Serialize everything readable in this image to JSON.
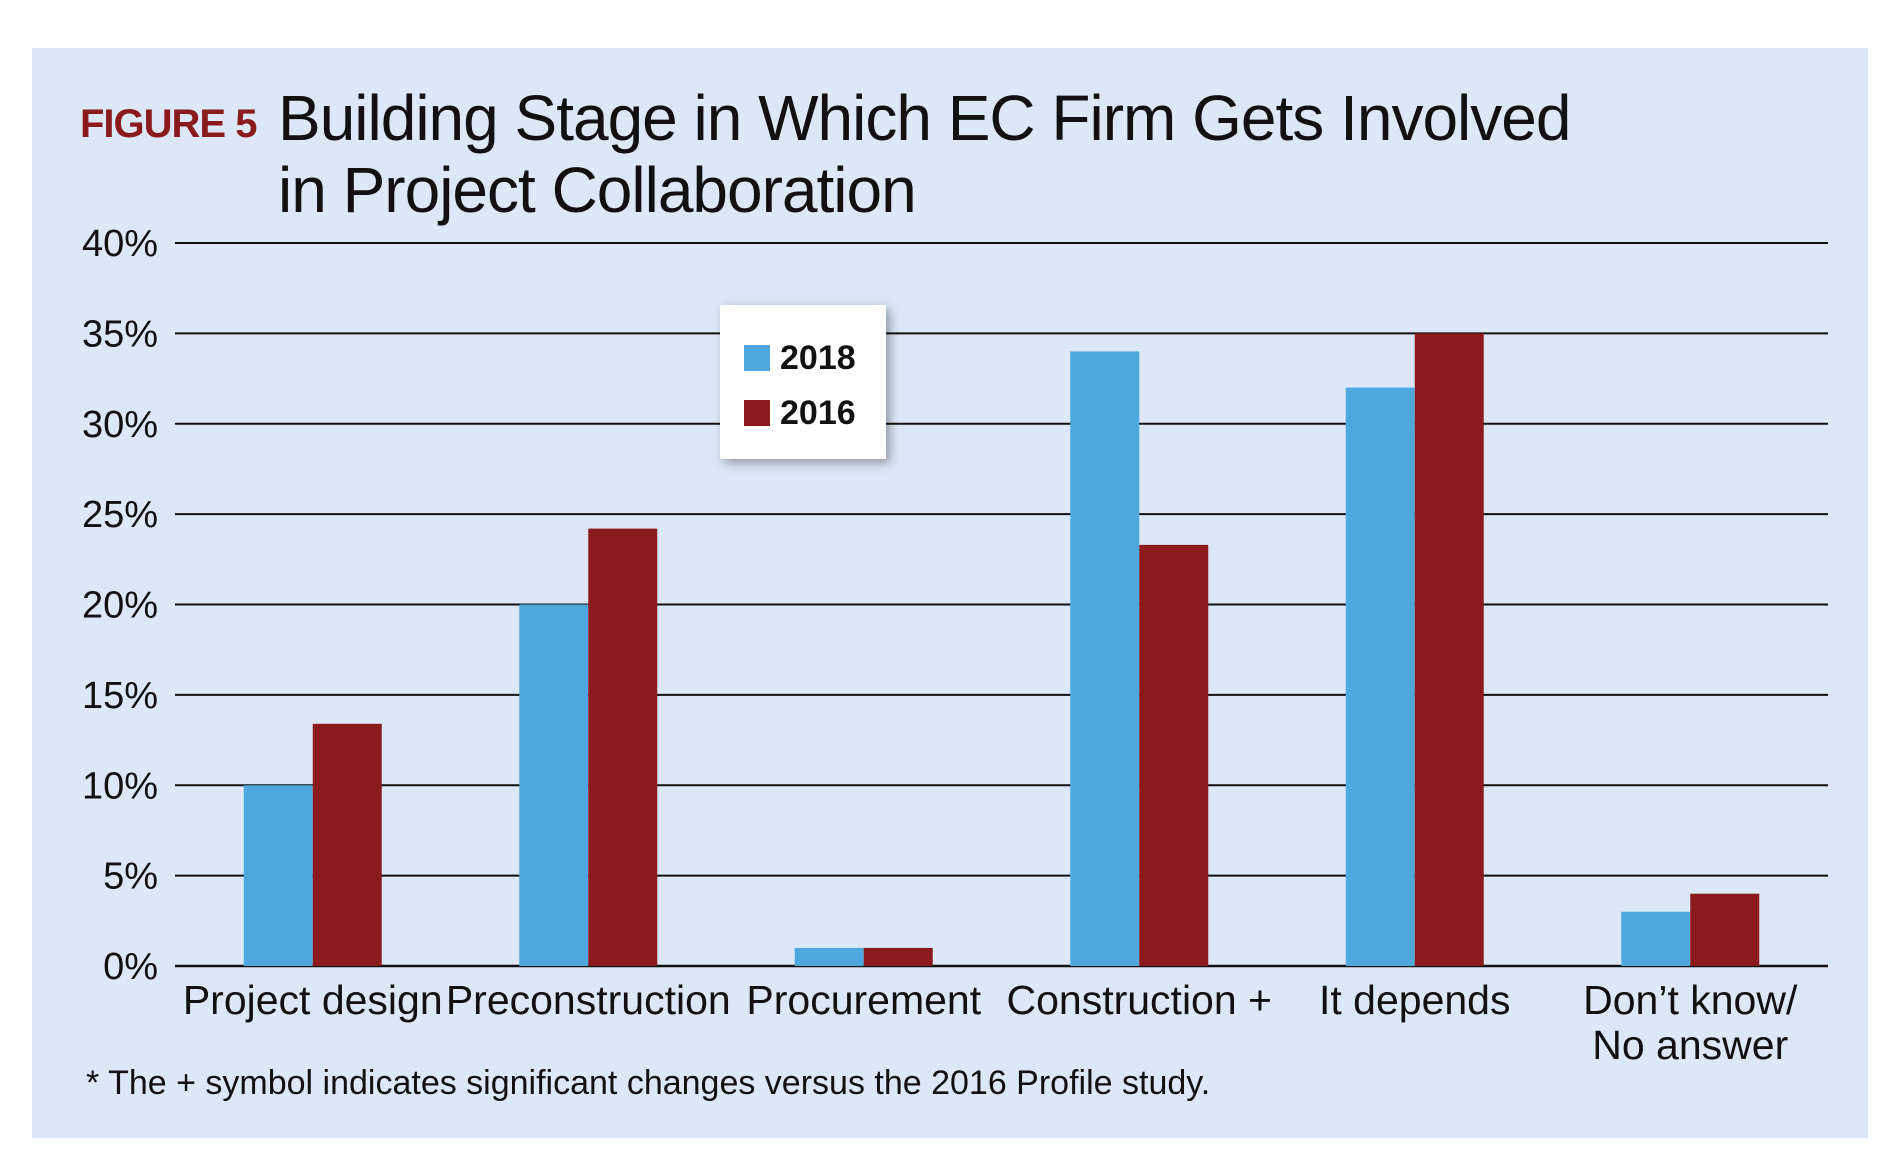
{
  "figure_label": "FIGURE 5",
  "title_lines": [
    "Building Stage in Which EC Firm Gets Involved",
    "in Project Collaboration"
  ],
  "footnote": "* The + symbol indicates significant changes versus the 2016 Profile study.",
  "colors": {
    "background": "#dce8f7",
    "series_2018": "#4fa8dd",
    "series_2016": "#8b1a1d",
    "figure_label": "#8b1a1d"
  },
  "chart_data": {
    "type": "bar",
    "title": "Building Stage in Which EC Firm Gets Involved in Project Collaboration",
    "categories": [
      [
        "Project design"
      ],
      [
        "Preconstruction"
      ],
      [
        "Procurement"
      ],
      [
        "Construction +"
      ],
      [
        "It depends"
      ],
      [
        "Don’t know/",
        "No answer"
      ]
    ],
    "series": [
      {
        "name": "2018",
        "color": "#4fa8dd",
        "values": [
          10,
          20,
          1,
          34,
          32,
          3
        ]
      },
      {
        "name": "2016",
        "color": "#8b1a1d",
        "values": [
          13.4,
          24.2,
          1,
          23.3,
          35,
          4
        ]
      }
    ],
    "ylim": [
      0,
      40
    ],
    "yticks": [
      "0%",
      "5%",
      "10%",
      "15%",
      "20%",
      "25%",
      "30%",
      "35%",
      "40%"
    ],
    "ytick_values": [
      0,
      5,
      10,
      15,
      20,
      25,
      30,
      35,
      40
    ],
    "grid": true,
    "legend_position": "top-center"
  }
}
